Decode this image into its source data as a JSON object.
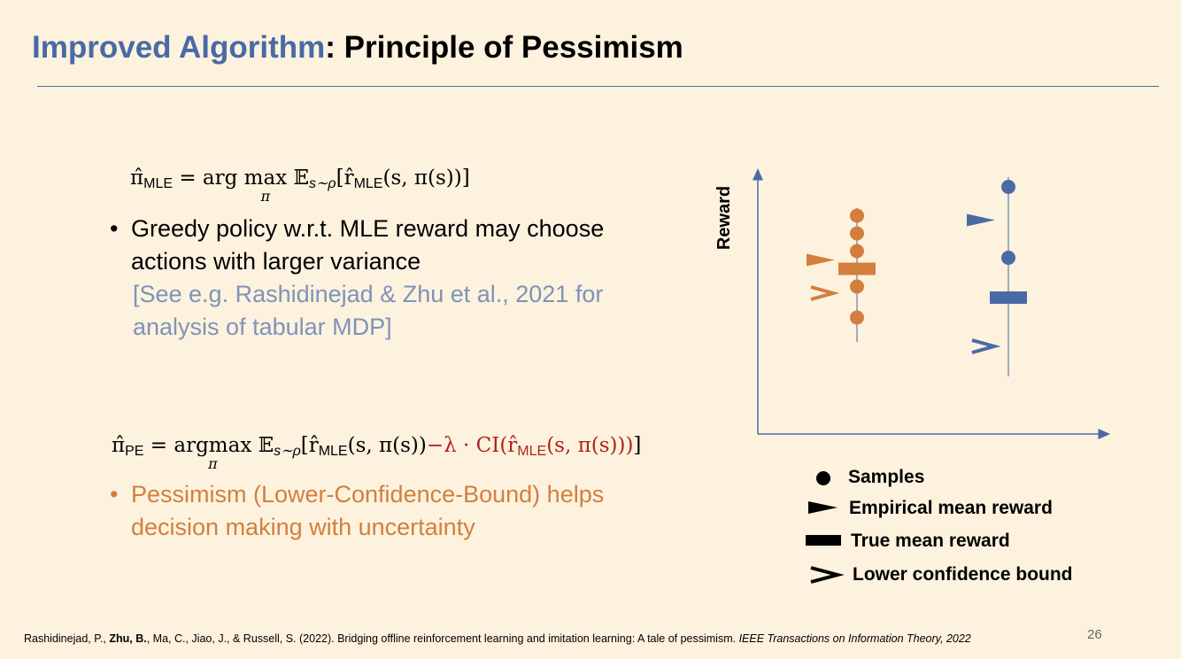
{
  "title": {
    "part1": "Improved Algorithm",
    "colon": ":",
    "part2": " Principle of Pessimism"
  },
  "eq1": {
    "lhs": "π̂",
    "lhs_sub": "MLE",
    "op": " = arg ",
    "max": "max",
    "under": "π",
    "expect": " 𝔼",
    "expect_sub": "s∼ρ",
    "body": "[r̂",
    "body_sub": "MLE",
    "body_end": "(s, π(s))]"
  },
  "bullet1": {
    "bullet": "•",
    "line1": "Greedy policy w.r.t. MLE reward may choose",
    "line2": "actions with larger variance",
    "ref1": "[See e.g. Rashidinejad & Zhu et al., 2021 for",
    "ref2": "analysis of tabular MDP]"
  },
  "eq2": {
    "lhs": "π̂",
    "lhs_sub": "PE",
    "op": " = ",
    "argmax": "argmax",
    "under": "π",
    "expect": " 𝔼",
    "expect_sub": "s∼ρ",
    "body": "[r̂",
    "body_sub": "MLE",
    "body_mid": "(s, π(s))",
    "penalty": "−λ · CI(r̂",
    "penalty_sub": "MLE",
    "penalty_end": "(s, π(s)))",
    "close": "]"
  },
  "bullet2": {
    "bullet": "•",
    "line1": "Pessimism (Lower-Confidence-Bound) helps",
    "line2": "decision making with uncertainty"
  },
  "diagram": {
    "ylabel": "Reward",
    "colors": {
      "orange": "#d27f3d",
      "blue": "#4a6aa5",
      "axis": "#4a6aa5"
    },
    "orange_action": {
      "samples": [
        9.5,
        8.7,
        7.9,
        6.3,
        4.9
      ],
      "empirical_mean": 7.5,
      "true_mean": 7.1,
      "lcb": 6.0
    },
    "blue_action": {
      "samples": [
        10.8,
        7.6
      ],
      "empirical_mean": 9.3,
      "true_mean": 5.8,
      "lcb": 3.6
    }
  },
  "legend": [
    {
      "icon": "dot",
      "label": "Samples"
    },
    {
      "icon": "flag",
      "label": "Empirical mean reward"
    },
    {
      "icon": "bar",
      "label": "True mean reward"
    },
    {
      "icon": "chevron",
      "label": "Lower confidence bound"
    }
  ],
  "footnote": {
    "pre": "Rashidinejad, P., ",
    "bold": "Zhu, B.",
    "mid": ", Ma, C., Jiao, J., & Russell, S. (2022). Bridging offline reinforcement learning and imitation learning: A tale of pessimism. ",
    "journal": "IEEE Transactions on Information Theory, 2022"
  },
  "page_number": "26"
}
